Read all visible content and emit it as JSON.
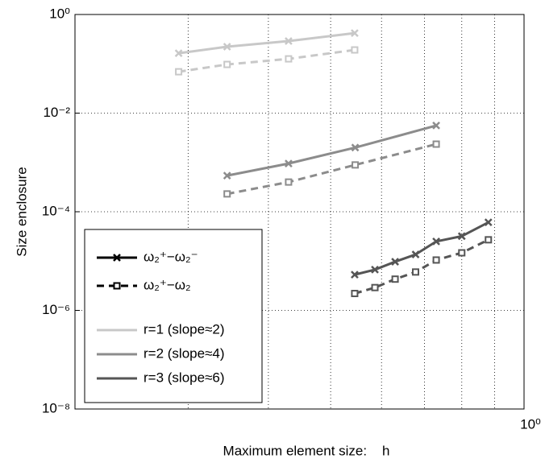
{
  "chart_data": {
    "type": "line",
    "ylabel": "Size enclosure",
    "xlabel": "Maximum element size:    h",
    "log_x": true,
    "log_y": true,
    "grid": true,
    "xlim": [
      0.2,
      1
    ],
    "xticks": [
      {
        "value": 1,
        "label": "10⁰"
      }
    ],
    "xminor_grid": [
      0.3,
      0.4,
      0.5,
      0.6,
      0.7,
      0.8,
      0.9
    ],
    "ylim": [
      1e-08,
      1
    ],
    "yticks": [
      {
        "value": 1e-08,
        "label": "10⁻⁸"
      },
      {
        "value": 1e-06,
        "label": "10⁻⁶"
      },
      {
        "value": 0.0001,
        "label": "10⁻⁴"
      },
      {
        "value": 0.01,
        "label": "10⁻²"
      },
      {
        "value": 1,
        "label": "10⁰"
      }
    ],
    "legend": "lower left",
    "styles": [
      {
        "name": "ω₂⁺−ω₂⁻",
        "marker": "x",
        "dashed": false
      },
      {
        "name": "ω₂⁺−ω₂",
        "marker": "square",
        "dashed": true
      }
    ],
    "series": [
      {
        "name": "r=1 (slope≈2)",
        "color": "#c8c8c8",
        "x": [
          0.29,
          0.345,
          0.43,
          0.545
        ],
        "enclosures": [
          [
            0.164,
            0.222,
            0.289,
            0.42
          ],
          [
            0.069,
            0.097,
            0.126,
            0.191
          ]
        ]
      },
      {
        "name": "r=2 (slope≈4)",
        "color": "#8c8c8c",
        "x": [
          0.345,
          0.43,
          0.546,
          0.73
        ],
        "enclosures": [
          [
            0.00054,
            0.00095,
            0.002,
            0.0056
          ],
          [
            0.00023,
            0.0004,
            0.00089,
            0.00235
          ]
        ]
      },
      {
        "name": "r=3 (slope≈6)",
        "color": "#555555",
        "x": [
          0.545,
          0.586,
          0.63,
          0.678,
          0.73,
          0.8,
          0.88
        ],
        "enclosures": [
          [
            5.3e-06,
            6.7e-06,
            9.7e-06,
            1.36e-05,
            2.5e-05,
            3.2e-05,
            6.1e-05
          ],
          [
            2.2e-06,
            2.9e-06,
            4.3e-06,
            6e-06,
            1.05e-05,
            1.47e-05,
            2.7e-05
          ]
        ]
      }
    ]
  }
}
